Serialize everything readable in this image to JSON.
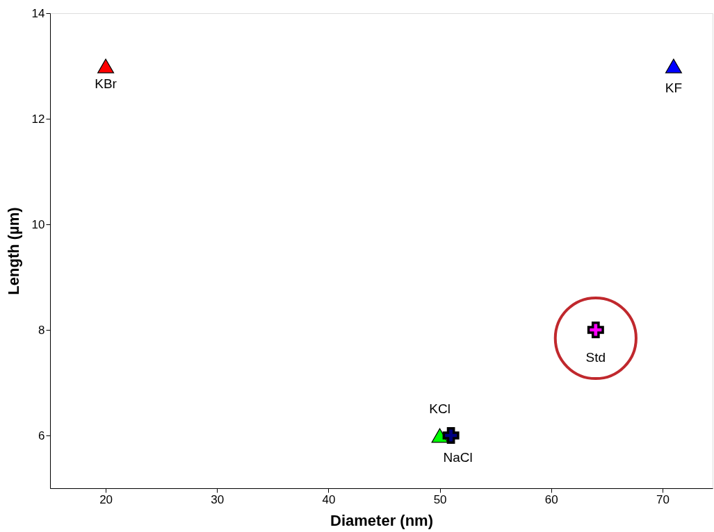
{
  "chart_data": {
    "type": "scatter",
    "xlabel": "Diameter (nm)",
    "ylabel": "Length (µm)",
    "xlim": [
      15,
      74.5
    ],
    "ylim": [
      5,
      14
    ],
    "xticks": [
      20,
      30,
      40,
      50,
      60,
      70
    ],
    "yticks": [
      6,
      8,
      10,
      12,
      14
    ],
    "grid": false,
    "legend": false,
    "series": [
      {
        "name": "KBr",
        "color": "#ff0000",
        "marker": "triangle",
        "x": [
          20
        ],
        "values": [
          13
        ]
      },
      {
        "name": "KF",
        "color": "#0000ff",
        "marker": "triangle",
        "x": [
          71
        ],
        "values": [
          13
        ]
      },
      {
        "name": "KCl",
        "color": "#00ff00",
        "marker": "triangle",
        "x": [
          50
        ],
        "values": [
          6
        ]
      },
      {
        "name": "NaCl",
        "color": "#000080",
        "marker": "cross",
        "x": [
          51
        ],
        "values": [
          6
        ]
      },
      {
        "name": "Std",
        "color": "#ff00ff",
        "marker": "cross",
        "x": [
          64
        ],
        "values": [
          8
        ]
      }
    ]
  }
}
